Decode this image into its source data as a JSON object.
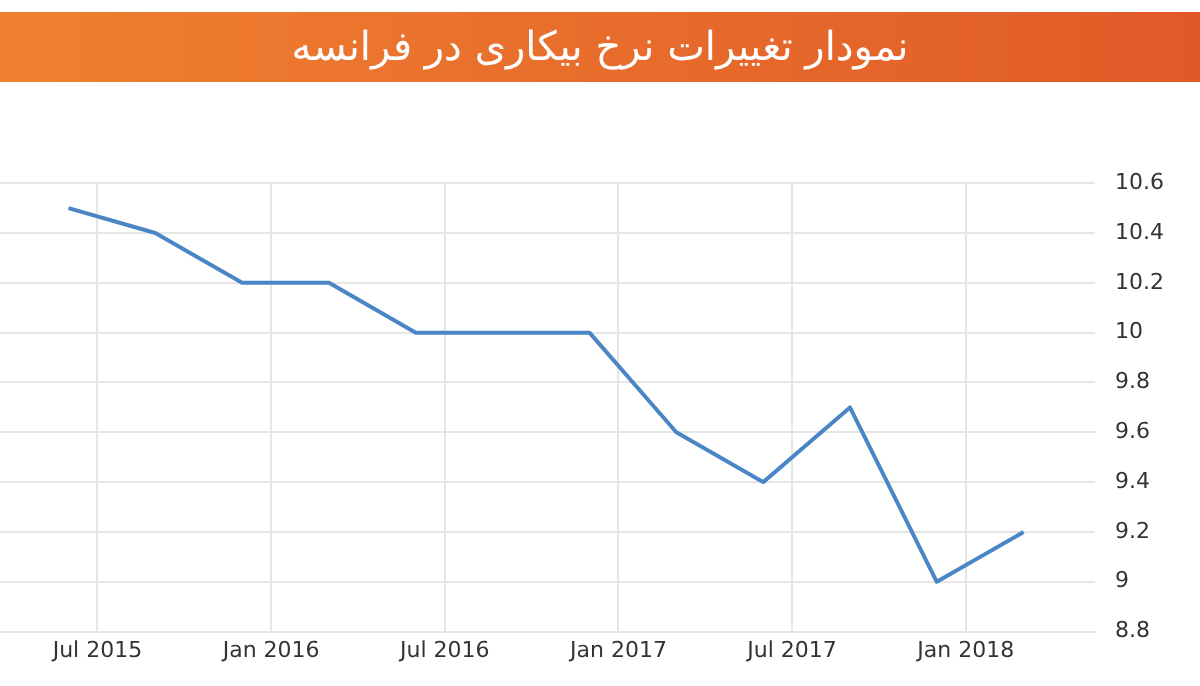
{
  "chart_data": {
    "type": "line",
    "title": "نمودار تغییرات نرخ بیکاری در فرانسه",
    "x": [
      "2015-06",
      "2015-09",
      "2015-12",
      "2016-03",
      "2016-06",
      "2016-09",
      "2016-12",
      "2017-03",
      "2017-06",
      "2017-09",
      "2017-12",
      "2018-03"
    ],
    "series": [
      {
        "color": "#4a86c5",
        "values": [
          10.5,
          10.4,
          10.2,
          10.2,
          10.0,
          10.0,
          10.0,
          9.6,
          9.4,
          9.7,
          9.0,
          9.2
        ]
      }
    ],
    "xlim": [
      "2015-03-20",
      "2018-05-15"
    ],
    "xticks": [
      {
        "value": "2015-07",
        "label": "Jul 2015"
      },
      {
        "value": "2016-01",
        "label": "Jan 2016"
      },
      {
        "value": "2016-07",
        "label": "Jul 2016"
      },
      {
        "value": "2017-01",
        "label": "Jan 2017"
      },
      {
        "value": "2017-07",
        "label": "Jul 2017"
      },
      {
        "value": "2018-01",
        "label": "Jan 2018"
      }
    ],
    "ylim": [
      8.8,
      10.6
    ],
    "yticks": [
      8.8,
      9,
      9.2,
      9.4,
      9.6,
      9.8,
      10,
      10.2,
      10.4,
      10.6
    ],
    "grid": true,
    "legend": false,
    "marker": "none",
    "line_style": "solid"
  }
}
